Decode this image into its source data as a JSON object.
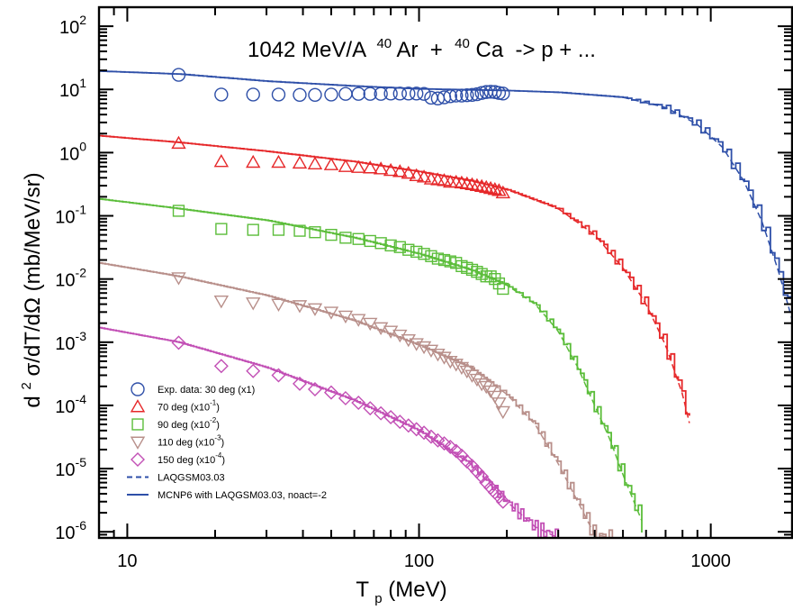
{
  "chart_data": {
    "type": "line",
    "title": "1042 MeV/A",
    "title_reaction": {
      "projectile_mass": "40",
      "projectile": "Ar",
      "plus": " + ",
      "target_mass": "40",
      "target": "Ca",
      "products": " -> p + ..."
    },
    "xlabel": {
      "base": "T",
      "sub": "p",
      "rest": "(MeV)"
    },
    "ylabel": {
      "pre": "d",
      "sup": "2",
      "body": "σ/dT/dΩ (mb/MeV/sr)"
    },
    "x_scale": "log",
    "y_scale": "log",
    "xlim": [
      8,
      1900
    ],
    "ylim": [
      8e-07,
      200
    ],
    "x_ticks": [
      {
        "value": 10,
        "label": "10"
      },
      {
        "value": 100,
        "label": "100"
      },
      {
        "value": 1000,
        "label": "1000"
      }
    ],
    "y_ticks": [
      {
        "value": 100,
        "base": "10",
        "exp": "2"
      },
      {
        "value": 10,
        "base": "10",
        "exp": "1"
      },
      {
        "value": 1,
        "base": "10",
        "exp": "0"
      },
      {
        "value": 0.1,
        "base": "10",
        "exp": "-1"
      },
      {
        "value": 0.01,
        "base": "10",
        "exp": "-2"
      },
      {
        "value": 0.001,
        "base": "10",
        "exp": "-3"
      },
      {
        "value": 0.0001,
        "base": "10",
        "exp": "-4"
      },
      {
        "value": 1e-05,
        "base": "10",
        "exp": "-5"
      },
      {
        "value": 1e-06,
        "base": "10",
        "exp": "-6"
      }
    ],
    "grid": false,
    "legend_position": "bottom-left",
    "series": [
      {
        "legend": {
          "text": "Exp. data: 30 deg (x1)"
        },
        "color": "#2e4fa8",
        "marker": "circle",
        "points": [
          [
            15,
            17
          ],
          [
            21,
            8.3
          ],
          [
            27,
            8.3
          ],
          [
            33,
            8.3
          ],
          [
            39,
            8.2
          ],
          [
            44,
            8.2
          ],
          [
            50,
            8.3
          ],
          [
            56,
            8.5
          ],
          [
            62,
            8.5
          ],
          [
            68,
            8.5
          ],
          [
            74,
            8.5
          ],
          [
            80,
            8.6
          ],
          [
            86,
            8.6
          ],
          [
            92,
            8.6
          ],
          [
            98,
            8.6
          ],
          [
            104,
            8.5
          ],
          [
            110,
            7.4
          ],
          [
            116,
            7.2
          ],
          [
            122,
            7.5
          ],
          [
            128,
            7.8
          ],
          [
            134,
            8
          ],
          [
            140,
            8
          ],
          [
            146,
            8.1
          ],
          [
            152,
            8.2
          ],
          [
            158,
            8.4
          ],
          [
            164,
            8.8
          ],
          [
            170,
            9.1
          ],
          [
            176,
            9.2
          ],
          [
            182,
            9.1
          ],
          [
            188,
            8.8
          ],
          [
            194,
            8.6
          ]
        ],
        "curve": [
          [
            8,
            19.5
          ],
          [
            15,
            17.5
          ],
          [
            30,
            13.5
          ],
          [
            60,
            11.3
          ],
          [
            100,
            10.2
          ],
          [
            200,
            9.6
          ],
          [
            300,
            9
          ],
          [
            500,
            7.5
          ],
          [
            700,
            5.2
          ],
          [
            900,
            2.8
          ],
          [
            1100,
            1.2
          ],
          [
            1300,
            0.35
          ],
          [
            1500,
            0.08
          ],
          [
            1700,
            0.014
          ],
          [
            1900,
            0.0023
          ]
        ]
      },
      {
        "legend": {
          "text": "70 deg (x10",
          "exp": "-1",
          "close": ")"
        },
        "color": "#e6282a",
        "marker": "triangle-up",
        "points": [
          [
            15,
            1.4
          ],
          [
            21,
            0.72
          ],
          [
            27,
            0.7
          ],
          [
            33,
            0.7
          ],
          [
            39,
            0.68
          ],
          [
            44,
            0.66
          ],
          [
            50,
            0.64
          ],
          [
            56,
            0.6
          ],
          [
            62,
            0.58
          ],
          [
            68,
            0.57
          ],
          [
            74,
            0.55
          ],
          [
            80,
            0.52
          ],
          [
            86,
            0.5
          ],
          [
            92,
            0.47
          ],
          [
            98,
            0.43
          ],
          [
            104,
            0.41
          ],
          [
            110,
            0.38
          ],
          [
            116,
            0.37
          ],
          [
            122,
            0.36
          ],
          [
            128,
            0.34
          ],
          [
            134,
            0.34
          ],
          [
            140,
            0.33
          ],
          [
            146,
            0.32
          ],
          [
            152,
            0.31
          ],
          [
            158,
            0.3
          ],
          [
            164,
            0.29
          ],
          [
            170,
            0.28
          ],
          [
            176,
            0.27
          ],
          [
            182,
            0.26
          ],
          [
            188,
            0.25
          ],
          [
            194,
            0.23
          ]
        ],
        "curve": [
          [
            8,
            1.85
          ],
          [
            15,
            1.45
          ],
          [
            30,
            1.05
          ],
          [
            60,
            0.72
          ],
          [
            100,
            0.5
          ],
          [
            150,
            0.36
          ],
          [
            200,
            0.26
          ],
          [
            300,
            0.13
          ],
          [
            400,
            0.05
          ],
          [
            500,
            0.015
          ],
          [
            600,
            0.004
          ],
          [
            700,
            0.0009
          ],
          [
            800,
            0.00015
          ],
          [
            870,
            3e-05
          ]
        ]
      },
      {
        "legend": {
          "text": "90 deg (x10",
          "exp": "-2",
          "close": ")"
        },
        "color": "#5bbd3a",
        "marker": "square",
        "points": [
          [
            15,
            0.12
          ],
          [
            21,
            0.062
          ],
          [
            27,
            0.06
          ],
          [
            33,
            0.06
          ],
          [
            39,
            0.058
          ],
          [
            44,
            0.055
          ],
          [
            50,
            0.05
          ],
          [
            56,
            0.045
          ],
          [
            62,
            0.043
          ],
          [
            68,
            0.04
          ],
          [
            74,
            0.037
          ],
          [
            80,
            0.034
          ],
          [
            86,
            0.032
          ],
          [
            92,
            0.029
          ],
          [
            98,
            0.027
          ],
          [
            104,
            0.025
          ],
          [
            110,
            0.023
          ],
          [
            116,
            0.021
          ],
          [
            122,
            0.02
          ],
          [
            128,
            0.019
          ],
          [
            134,
            0.018
          ],
          [
            140,
            0.016
          ],
          [
            146,
            0.015
          ],
          [
            152,
            0.014
          ],
          [
            158,
            0.013
          ],
          [
            164,
            0.012
          ],
          [
            170,
            0.011
          ],
          [
            176,
            0.011
          ],
          [
            182,
            0.01
          ],
          [
            188,
            0.0085
          ],
          [
            194,
            0.007
          ]
        ],
        "curve": [
          [
            8,
            0.185
          ],
          [
            15,
            0.13
          ],
          [
            30,
            0.085
          ],
          [
            60,
            0.045
          ],
          [
            100,
            0.025
          ],
          [
            150,
            0.014
          ],
          [
            200,
            0.008
          ],
          [
            250,
            0.004
          ],
          [
            300,
            0.0015
          ],
          [
            350,
            0.0004
          ],
          [
            400,
            0.0001
          ],
          [
            450,
            3e-05
          ],
          [
            500,
            8e-06
          ],
          [
            580,
            1.5e-06
          ]
        ]
      },
      {
        "legend": {
          "text": "110 deg (x10",
          "exp": "-3",
          "close": ")"
        },
        "color": "#b88f8a",
        "marker": "triangle-down",
        "points": [
          [
            15,
            0.0105
          ],
          [
            21,
            0.0045
          ],
          [
            27,
            0.0042
          ],
          [
            33,
            0.004
          ],
          [
            39,
            0.0038
          ],
          [
            44,
            0.0034
          ],
          [
            50,
            0.003
          ],
          [
            56,
            0.0026
          ],
          [
            62,
            0.0023
          ],
          [
            68,
            0.002
          ],
          [
            74,
            0.0017
          ],
          [
            80,
            0.0015
          ],
          [
            86,
            0.0013
          ],
          [
            92,
            0.0011
          ],
          [
            98,
            0.00095
          ],
          [
            104,
            0.00085
          ],
          [
            110,
            0.00075
          ],
          [
            116,
            0.00065
          ],
          [
            122,
            0.00058
          ],
          [
            128,
            0.0005
          ],
          [
            134,
            0.00045
          ],
          [
            140,
            0.0004
          ],
          [
            146,
            0.00035
          ],
          [
            152,
            0.0003
          ],
          [
            158,
            0.00026
          ],
          [
            164,
            0.00022
          ],
          [
            170,
            0.0002
          ],
          [
            176,
            0.00017
          ],
          [
            182,
            0.00014
          ],
          [
            188,
            0.00011
          ],
          [
            194,
            8e-05
          ]
        ],
        "curve": [
          [
            8,
            0.018
          ],
          [
            15,
            0.011
          ],
          [
            30,
            0.0055
          ],
          [
            60,
            0.0022
          ],
          [
            100,
            0.0009
          ],
          [
            150,
            0.0004
          ],
          [
            200,
            0.00015
          ],
          [
            250,
            5e-05
          ],
          [
            300,
            1.2e-05
          ],
          [
            350,
            3e-06
          ],
          [
            400,
            9e-07
          ],
          [
            460,
            8e-07
          ]
        ]
      },
      {
        "legend": {
          "text": "150 deg (x10",
          "exp": "-4",
          "close": ")"
        },
        "color": "#c24fb5",
        "marker": "diamond",
        "points": [
          [
            15,
            0.00098
          ],
          [
            21,
            0.00042
          ],
          [
            27,
            0.00035
          ],
          [
            33,
            0.0003
          ],
          [
            39,
            0.00022
          ],
          [
            44,
            0.00018
          ],
          [
            50,
            0.00016
          ],
          [
            56,
            0.00013
          ],
          [
            62,
            0.00011
          ],
          [
            68,
            9e-05
          ],
          [
            74,
            7.5e-05
          ],
          [
            80,
            6.5e-05
          ],
          [
            86,
            5.5e-05
          ],
          [
            92,
            4.8e-05
          ],
          [
            98,
            4.2e-05
          ],
          [
            104,
            3.7e-05
          ],
          [
            110,
            3.2e-05
          ],
          [
            116,
            2.8e-05
          ],
          [
            122,
            2.5e-05
          ],
          [
            128,
            2.2e-05
          ],
          [
            134,
            1.9e-05
          ],
          [
            140,
            1.6e-05
          ],
          [
            146,
            1.3e-05
          ],
          [
            152,
            1.1e-05
          ],
          [
            158,
            9e-06
          ],
          [
            164,
            7.5e-06
          ],
          [
            170,
            6e-06
          ],
          [
            176,
            5e-06
          ],
          [
            182,
            4.2e-06
          ],
          [
            188,
            3.6e-06
          ],
          [
            194,
            3e-06
          ]
        ],
        "curve": [
          [
            8,
            0.0017
          ],
          [
            15,
            0.001
          ],
          [
            30,
            0.0004
          ],
          [
            60,
            0.00012
          ],
          [
            100,
            4e-05
          ],
          [
            150,
            1.2e-05
          ],
          [
            200,
            3e-06
          ],
          [
            250,
            1.2e-06
          ],
          [
            300,
            8e-07
          ]
        ]
      }
    ],
    "line_legend": [
      {
        "text": "LAQGSM03.03",
        "style": "dashed",
        "color": "#2e4fa8"
      },
      {
        "text": "MCNP6 with LAQGSM03.03, noact=-2",
        "style": "solid",
        "color": "#2e4fa8"
      }
    ]
  }
}
